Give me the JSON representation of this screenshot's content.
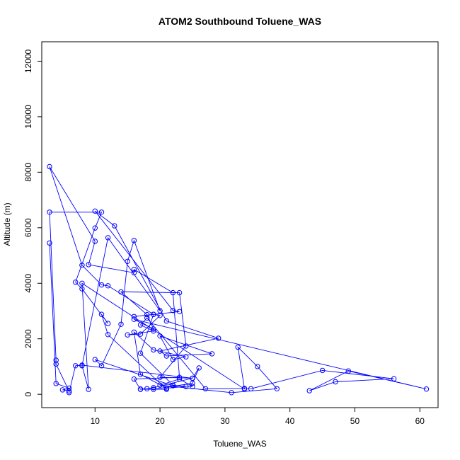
{
  "chart_data": {
    "type": "line",
    "title": "ATOM2 Southbound Toluene_WAS",
    "xlabel": "Toluene_WAS",
    "ylabel": "Altitude (m)",
    "xlim": [
      1.8,
      62.8
    ],
    "ylim": [
      -480,
      12700
    ],
    "x_ticks": [
      10,
      20,
      30,
      40,
      50,
      60
    ],
    "y_ticks": [
      0,
      2000,
      4000,
      6000,
      8000,
      10000,
      12000
    ],
    "grid": false,
    "line_color": "#0000ff",
    "markers": "open-circle",
    "series": [
      {
        "x": [
          3,
          4,
          6,
          5,
          6,
          4,
          4,
          3,
          11,
          10,
          7,
          8,
          12,
          11,
          12,
          21,
          17,
          18,
          19,
          25,
          26,
          25,
          19,
          17,
          16,
          23,
          22,
          16,
          16,
          9,
          10,
          3,
          8,
          11,
          12,
          19,
          16,
          23,
          22,
          10,
          13,
          21,
          29,
          20,
          21,
          28,
          20,
          22,
          24,
          19,
          16,
          17,
          21,
          24,
          22,
          17,
          19,
          20,
          17,
          15,
          19,
          17,
          18,
          27,
          33,
          32,
          35,
          38,
          31,
          20,
          23,
          25,
          22,
          10,
          11,
          14,
          15,
          16,
          20,
          12,
          8,
          9,
          8,
          33,
          34,
          45,
          56,
          47,
          43,
          49,
          61,
          16,
          19,
          18,
          14,
          23,
          24,
          20,
          25,
          8,
          7,
          6
        ],
        "y": [
          5450,
          390,
          220,
          160,
          120,
          1090,
          1230,
          6560,
          6560,
          5990,
          4040,
          3800,
          2550,
          2880,
          2150,
          180,
          190,
          200,
          240,
          580,
          950,
          400,
          180,
          180,
          550,
          610,
          3660,
          4500,
          4380,
          4670,
          5510,
          8200,
          4650,
          3940,
          3910,
          2880,
          2800,
          2980,
          3020,
          6600,
          6070,
          2640,
          2020,
          1560,
          1380,
          1460,
          2100,
          1250,
          1350,
          1600,
          2240,
          720,
          220,
          280,
          330,
          1480,
          2880,
          2840,
          2170,
          2140,
          2280,
          2500,
          2750,
          200,
          210,
          1700,
          1000,
          200,
          60,
          330,
          550,
          280,
          310,
          1250,
          1030,
          2520,
          4790,
          5540,
          3010,
          5640,
          1030,
          180,
          4000,
          190,
          200,
          860,
          560,
          450,
          130,
          840,
          190,
          2700,
          2350,
          2870,
          3690,
          3660,
          1740,
          610,
          580,
          1050,
          1030,
          60
        ]
      }
    ]
  }
}
